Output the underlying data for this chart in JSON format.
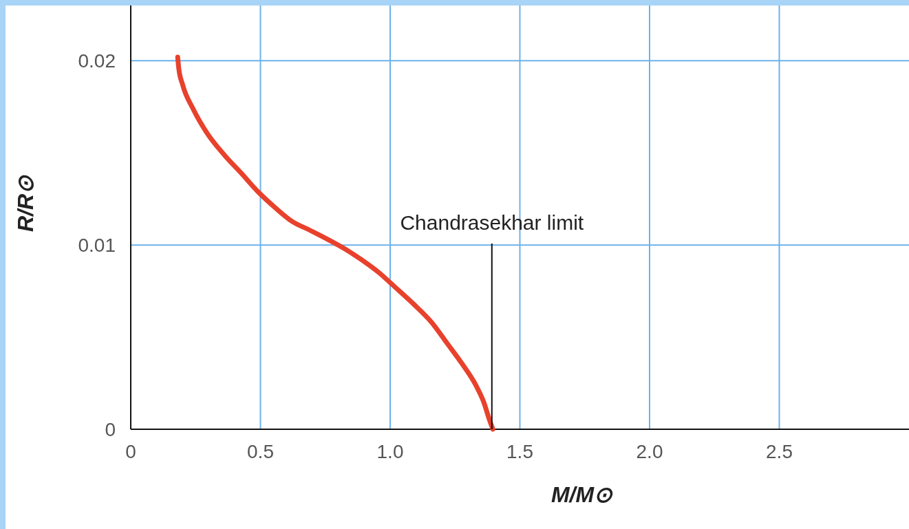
{
  "chart_data": {
    "type": "line",
    "xlabel": "M/M⊙",
    "ylabel": "R/R⊙",
    "xlim": [
      0,
      3
    ],
    "ylim": [
      0,
      0.023
    ],
    "xticks": [
      0,
      0.5,
      {
        "value": 1,
        "label": "1.0"
      },
      1.5,
      {
        "value": 2,
        "label": "2.0"
      },
      2.5
    ],
    "yticks": [
      0,
      0.01,
      0.02
    ],
    "grid": true,
    "marker": "none",
    "line_style": "solid",
    "series": [
      {
        "color": "#e8412c",
        "x": [
          0.181,
          0.185,
          0.2,
          0.24,
          0.293,
          0.36,
          0.426,
          0.49,
          0.559,
          0.62,
          0.691,
          0.76,
          0.824,
          0.89,
          0.957,
          1.02,
          1.09,
          1.16,
          1.223,
          1.28,
          1.33,
          1.36,
          1.383,
          1.396
        ],
        "values": [
          0.0202,
          0.0196,
          0.0187,
          0.0174,
          0.0161,
          0.0149,
          0.0139,
          0.0129,
          0.012,
          0.0113,
          0.0108,
          0.0103,
          0.0098,
          0.0092,
          0.0085,
          0.0077,
          0.0068,
          0.0058,
          0.0046,
          0.0035,
          0.0024,
          0.0015,
          0.0005,
          0
        ]
      }
    ],
    "annotations": [
      {
        "text": "Chandrasekhar limit",
        "x": 1.4,
        "y": 0
      }
    ]
  }
}
